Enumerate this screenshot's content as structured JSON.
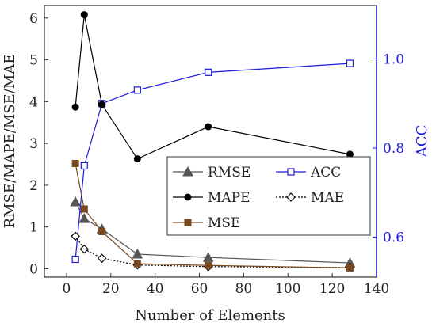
{
  "chart_data": {
    "type": "line",
    "xlabel": "Number of Elements",
    "ylabel_left": "RMSE/MAPE/MSE/MAE",
    "ylabel_right": "ACC",
    "xlim": [
      -10,
      140
    ],
    "xticks": [
      0,
      20,
      40,
      60,
      80,
      100,
      120,
      140
    ],
    "ylim_left": [
      -0.2,
      6.3
    ],
    "yticks_left": [
      0,
      1,
      2,
      3,
      4,
      5,
      6
    ],
    "ylim_right": [
      0.51,
      1.12
    ],
    "yticks_right": [
      0.6,
      0.8,
      1.0
    ],
    "grid": false,
    "legend_placement": "center-right",
    "series": [
      {
        "name": "RMSE",
        "axis": "left",
        "color": "#555555",
        "marker": "triangle-filled",
        "line": "solid",
        "x": [
          4,
          8,
          16,
          32,
          64,
          128
        ],
        "values": [
          1.6,
          1.2,
          0.95,
          0.35,
          0.27,
          0.14
        ]
      },
      {
        "name": "ACC",
        "axis": "right",
        "color": "#1a1ae0",
        "marker": "square-open",
        "line": "solid",
        "x": [
          4,
          8,
          16,
          32,
          64,
          128
        ],
        "values": [
          0.55,
          0.76,
          0.9,
          0.93,
          0.97,
          0.99
        ]
      },
      {
        "name": "MAPE",
        "axis": "left",
        "color": "#000000",
        "marker": "circle-filled",
        "line": "solid",
        "x": [
          4,
          8,
          16,
          32,
          64,
          128
        ],
        "values": [
          3.87,
          6.08,
          3.93,
          2.63,
          3.4,
          2.74
        ]
      },
      {
        "name": "MAE",
        "axis": "left",
        "color": "#000000",
        "marker": "diamond-open",
        "line": "dotted",
        "x": [
          4,
          8,
          16,
          32,
          64,
          128
        ],
        "values": [
          0.78,
          0.47,
          0.25,
          0.09,
          0.05,
          0.03
        ]
      },
      {
        "name": "MSE",
        "axis": "left",
        "color": "#7a4a1e",
        "marker": "square-filled",
        "line": "solid",
        "x": [
          4,
          8,
          16,
          32,
          64,
          128
        ],
        "values": [
          2.52,
          1.43,
          0.89,
          0.12,
          0.08,
          0.02
        ]
      }
    ]
  }
}
